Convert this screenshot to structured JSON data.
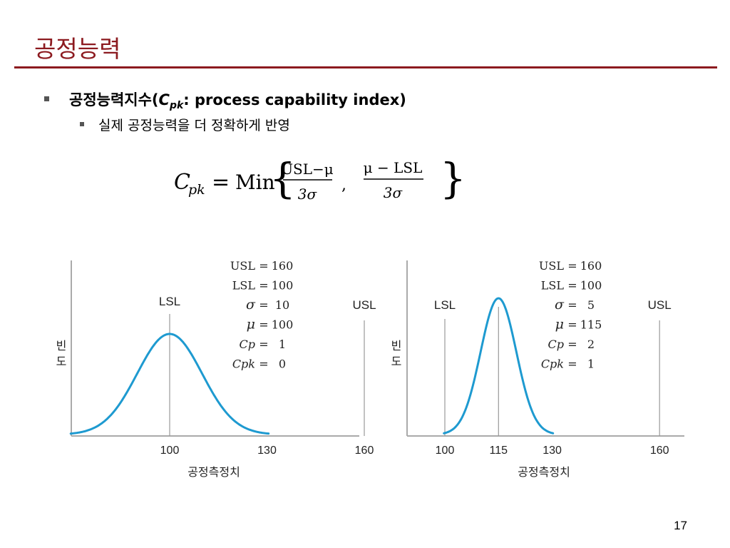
{
  "slide": {
    "title": "공정능력",
    "page_number": "17"
  },
  "bullets": {
    "level1_prefix": "공정능력지수(",
    "level1_symbol": "C",
    "level1_symbol_sub": "pk",
    "level1_suffix": ": process capability index)",
    "level2": "실제 공정능력을 더 정확하게 반영"
  },
  "formula": {
    "lhs": "C",
    "lhs_sub": "pk",
    "equals": "=",
    "min": "Min",
    "frac1_num": "USL−μ",
    "frac1_den": "3σ",
    "comma": ",",
    "frac2_num": "μ  − LSL",
    "frac2_den": "3σ",
    "brace_open": "{",
    "brace_close": "}"
  },
  "diagrams": [
    {
      "type": "normal-distribution",
      "ylabel": "빈\n도",
      "xlabel": "공정측정치",
      "x_ticks": [
        "100",
        "130",
        "160"
      ],
      "lsl_label": "LSL",
      "usl_label": "USL",
      "params": [
        {
          "name": "USL",
          "eq": "=",
          "value": "160"
        },
        {
          "name": "LSL",
          "eq": "=",
          "value": "100"
        },
        {
          "name": "σ",
          "eq": "=",
          "value": "10"
        },
        {
          "name": "μ",
          "eq": "=",
          "value": "100"
        },
        {
          "name": "Cp",
          "eq": "=",
          "value": "1"
        },
        {
          "name": "Cpk",
          "eq": "=",
          "value": "0"
        }
      ],
      "mean": 100,
      "sigma": 10,
      "lsl": 100,
      "usl": 160
    },
    {
      "type": "normal-distribution",
      "ylabel": "빈\n도",
      "xlabel": "공정측정치",
      "x_ticks": [
        "100",
        "115",
        "130",
        "160"
      ],
      "lsl_label": "LSL",
      "usl_label": "USL",
      "params": [
        {
          "name": "USL",
          "eq": "=",
          "value": "160"
        },
        {
          "name": "LSL",
          "eq": "=",
          "value": "100"
        },
        {
          "name": "σ",
          "eq": "=",
          "value": "5"
        },
        {
          "name": "μ",
          "eq": "=",
          "value": "115"
        },
        {
          "name": "Cp",
          "eq": "=",
          "value": "2"
        },
        {
          "name": "Cpk",
          "eq": "=",
          "value": "1"
        }
      ],
      "mean": 115,
      "sigma": 5,
      "lsl": 100,
      "usl": 160
    }
  ],
  "colors": {
    "title": "#8c1a1f",
    "curve": "#1e9ad0",
    "axis": "#aaaaaa",
    "spec_line": "#999999"
  }
}
